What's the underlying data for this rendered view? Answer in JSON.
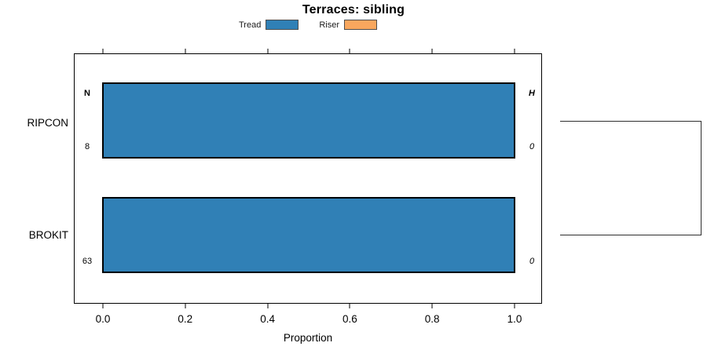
{
  "title": "Terraces: sibling",
  "legend": {
    "items": [
      {
        "label": "Tread",
        "color": "#3080b6"
      },
      {
        "label": "Riser",
        "color": "#f9a75e"
      }
    ]
  },
  "axis": {
    "xlabel": "Proportion",
    "xtick_labels": [
      "0.0",
      "0.2",
      "0.4",
      "0.6",
      "0.8",
      "1.0"
    ]
  },
  "columns": {
    "left_header": "N",
    "right_header": "H"
  },
  "rows": [
    {
      "category": "RIPCON",
      "left_value": "8",
      "right_value": "0"
    },
    {
      "category": "BROKIT",
      "left_value": "63",
      "right_value": "0"
    }
  ],
  "chart_data": {
    "type": "bar",
    "orientation": "horizontal",
    "title": "Terraces: sibling",
    "xlabel": "Proportion",
    "xlim": [
      0,
      1
    ],
    "xticks": [
      0.0,
      0.2,
      0.4,
      0.6,
      0.8,
      1.0
    ],
    "categories": [
      "RIPCON",
      "BROKIT"
    ],
    "series": [
      {
        "name": "Tread",
        "color": "#3080b6",
        "values": [
          1.0,
          1.0
        ]
      },
      {
        "name": "Riser",
        "color": "#f9a75e",
        "values": [
          0.0,
          0.0
        ]
      }
    ],
    "annotations": {
      "left_column": {
        "header": "N",
        "values": [
          8,
          63
        ]
      },
      "right_column": {
        "header": "H",
        "values": [
          0,
          0
        ]
      }
    },
    "legend_position": "top-center",
    "grid": false,
    "right_bracket": true
  }
}
